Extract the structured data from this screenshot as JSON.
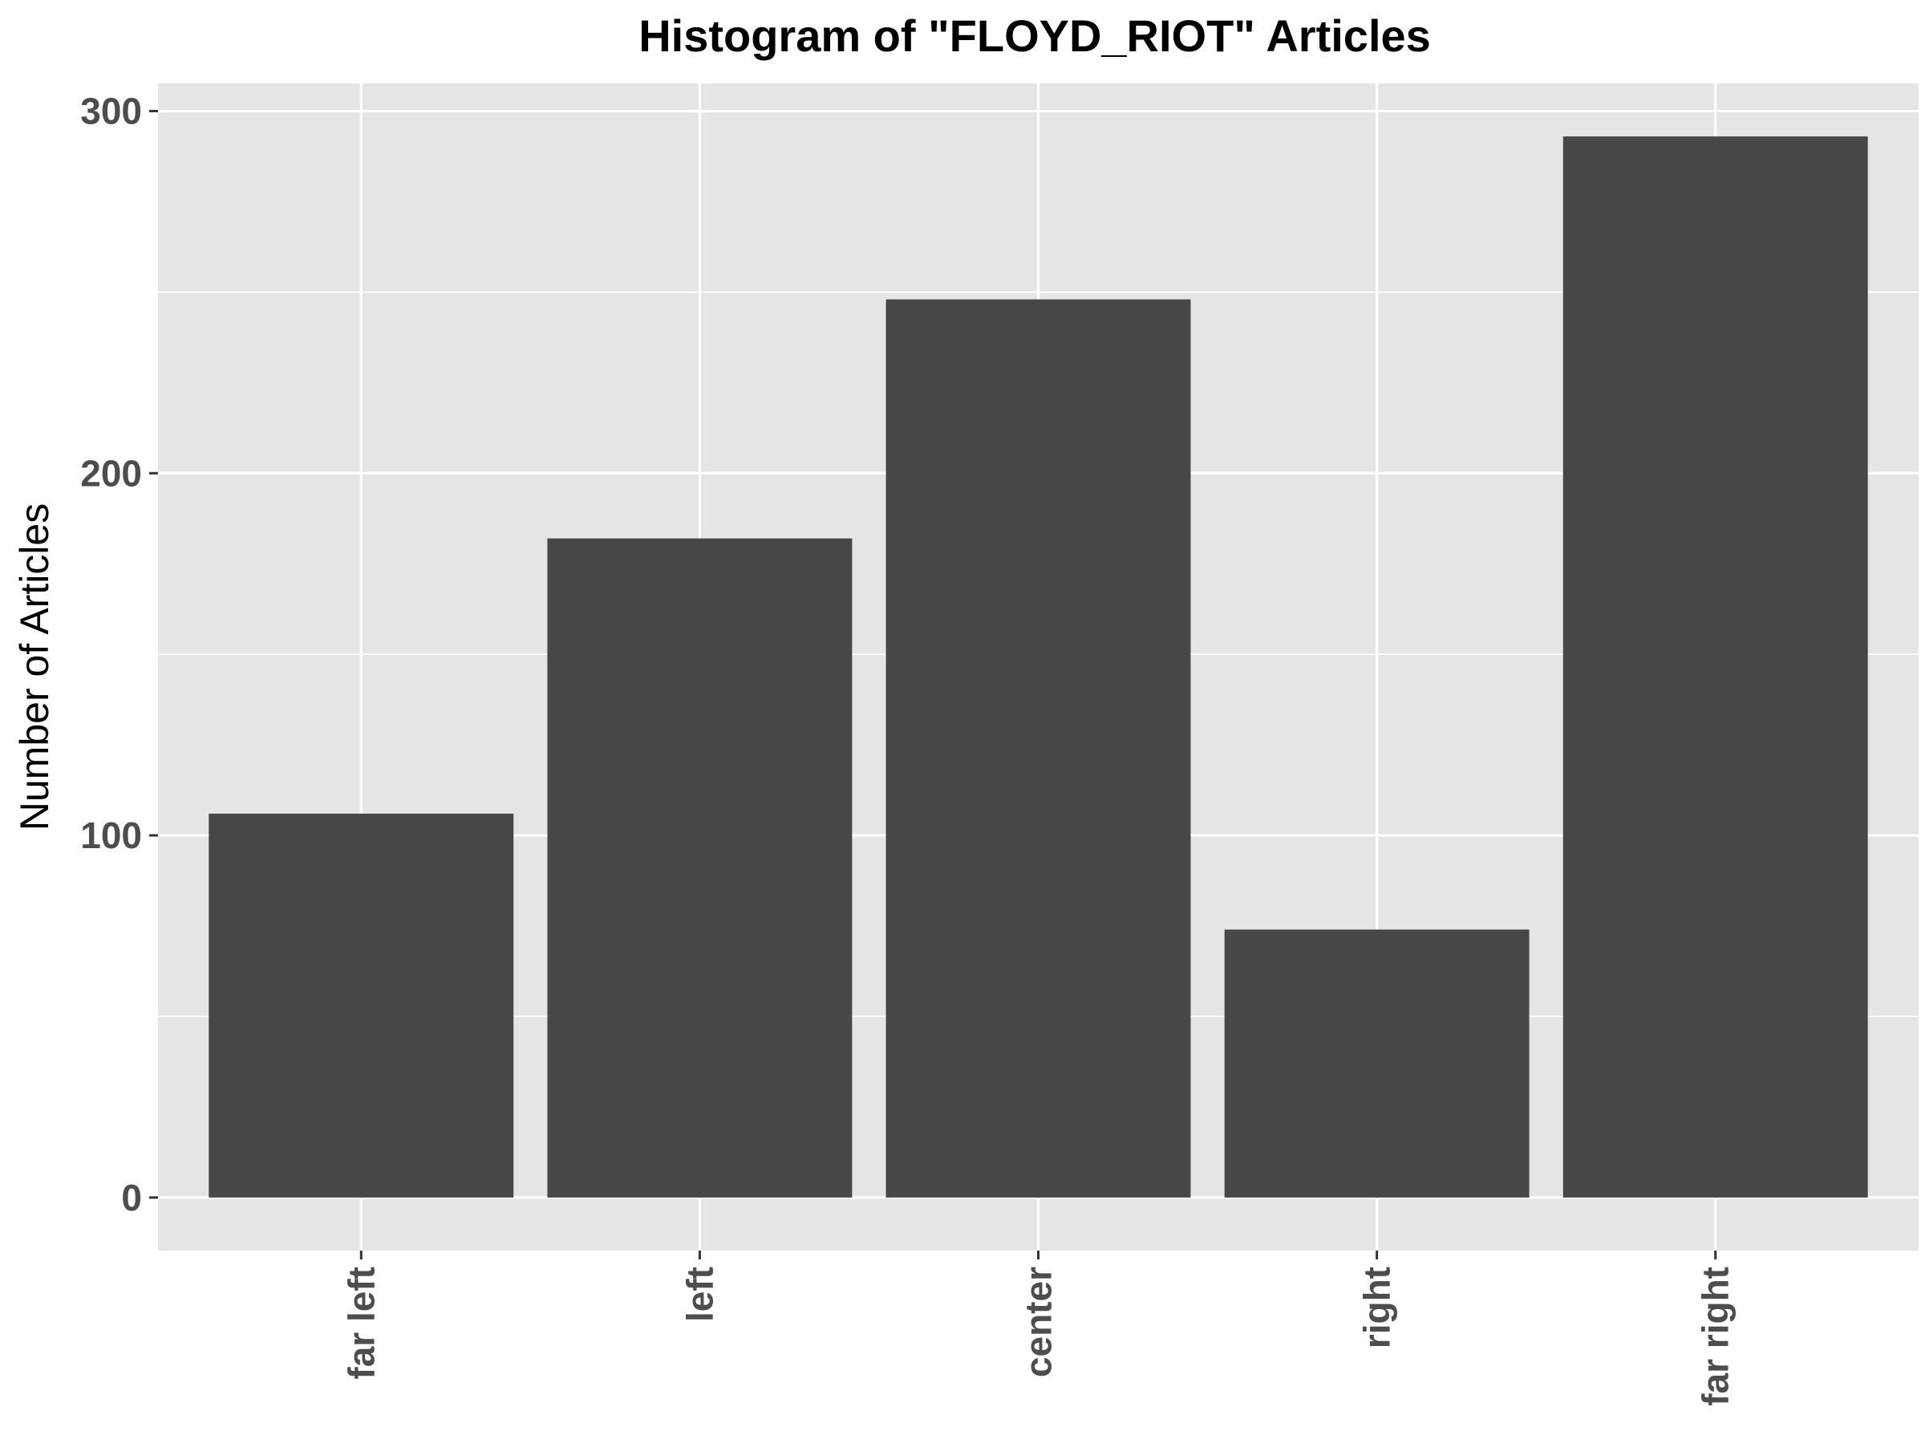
{
  "chart_data": {
    "type": "bar",
    "title": "Histogram of \"FLOYD_RIOT\" Articles",
    "xlabel": "",
    "ylabel": "Number of Articles",
    "categories": [
      "far left",
      "left",
      "center",
      "right",
      "far right"
    ],
    "values": [
      106,
      182,
      248,
      74,
      293
    ],
    "ylim": [
      -14.65,
      307.65
    ],
    "yticks": [
      0,
      100,
      200,
      300
    ],
    "grid": true,
    "legend": "none",
    "colors": {
      "bar": "#474747",
      "panel": "#e5e5e5",
      "grid": "#ffffff",
      "tick_text": "#4d4d4d",
      "tick_mark": "#333333"
    }
  }
}
